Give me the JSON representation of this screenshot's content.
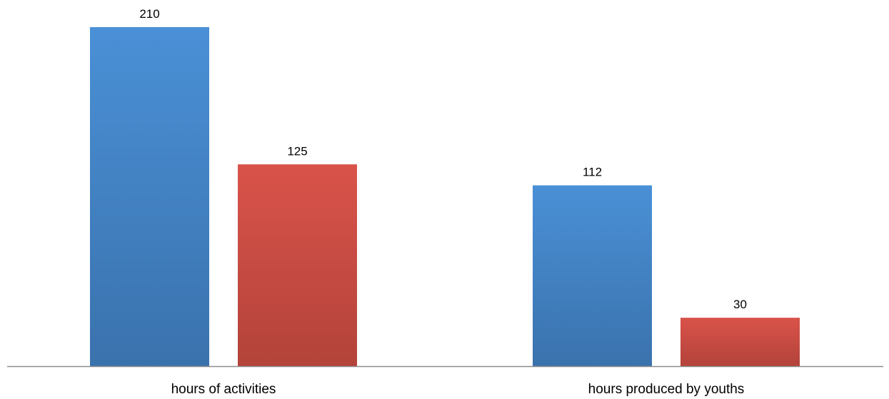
{
  "chart_data": {
    "type": "bar",
    "categories": [
      "hours of activities",
      "hours produced by youths"
    ],
    "series": [
      {
        "values": [
          210,
          112
        ],
        "color": "#4a90d6",
        "color_dark": "#3a72ad"
      },
      {
        "values": [
          125,
          30
        ],
        "color": "#d9534a",
        "color_dark": "#b3433a"
      }
    ],
    "data_labels": [
      [
        "210",
        "112"
      ],
      [
        "125",
        "30"
      ]
    ],
    "ylim": [
      0,
      210
    ],
    "title": "",
    "xlabel": "",
    "ylabel": "",
    "grid": false,
    "legend": "none",
    "axis_color": "#8c8c8c"
  }
}
